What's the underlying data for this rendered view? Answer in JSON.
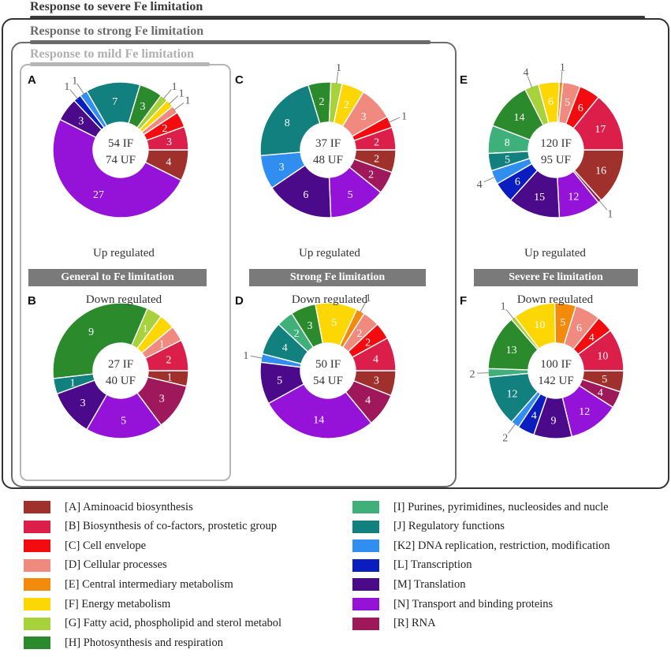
{
  "frames": {
    "severe_label": "Response to severe Fe limitation",
    "strong_label": "Response to strong Fe limitation",
    "mild_label": "Response to mild Fe limitation"
  },
  "bands": {
    "general": "General to Fe limitation",
    "strong": "Strong Fe limitation",
    "severe": "Severe Fe limitation"
  },
  "colors": {
    "A": "#a0302c",
    "B": "#dc1f4a",
    "C": "#f20c10",
    "D": "#f08a7e",
    "E": "#f28a0c",
    "F": "#fcd704",
    "G": "#a7d23c",
    "H": "#2b8a2b",
    "I": "#40b07a",
    "J": "#11807e",
    "K2": "#2f8ef0",
    "L": "#0a1dc0",
    "M": "#4a0a8a",
    "N": "#9512d8",
    "R": "#a0185c"
  },
  "chart_data": [
    {
      "type": "pie",
      "panel": "A",
      "regulation": "Up regulated",
      "center": [
        "54 IF",
        "74 UF"
      ],
      "slices": [
        {
          "cat": "A",
          "value": 4,
          "label": "4"
        },
        {
          "cat": "N",
          "value": 27,
          "label": "27"
        },
        {
          "cat": "M",
          "value": 3,
          "label": "3"
        },
        {
          "cat": "L",
          "value": 1,
          "label": "1"
        },
        {
          "cat": "K2",
          "value": 1,
          "label": "1"
        },
        {
          "cat": "J",
          "value": 7,
          "label": "7"
        },
        {
          "cat": "H",
          "value": 3,
          "label": "3"
        },
        {
          "cat": "G",
          "value": 1,
          "label": "1"
        },
        {
          "cat": "F",
          "value": 1,
          "label": "1"
        },
        {
          "cat": "D",
          "value": 1,
          "label": "1"
        },
        {
          "cat": "C",
          "value": 2,
          "label": "2"
        },
        {
          "cat": "B",
          "value": 3,
          "label": "3"
        }
      ]
    },
    {
      "type": "pie",
      "panel": "B",
      "regulation": "Down regulated",
      "center": [
        "27 IF",
        "40 UF"
      ],
      "slices": [
        {
          "cat": "A",
          "value": 1,
          "label": "1"
        },
        {
          "cat": "R",
          "value": 3,
          "label": "3"
        },
        {
          "cat": "N",
          "value": 5,
          "label": "5"
        },
        {
          "cat": "M",
          "value": 3,
          "label": "3"
        },
        {
          "cat": "J",
          "value": 1,
          "label": "1"
        },
        {
          "cat": "H",
          "value": 9,
          "label": "9"
        },
        {
          "cat": "G",
          "value": 1,
          "label": "1"
        },
        {
          "cat": "F",
          "value": 1,
          "label": ""
        },
        {
          "cat": "D",
          "value": 1,
          "label": "1"
        },
        {
          "cat": "B",
          "value": 2,
          "label": "2"
        }
      ]
    },
    {
      "type": "pie",
      "panel": "C",
      "regulation": "Up regulated",
      "center": [
        "37 IF",
        "48 UF"
      ],
      "slices": [
        {
          "cat": "A",
          "value": 2,
          "label": "2"
        },
        {
          "cat": "R",
          "value": 2,
          "label": "2"
        },
        {
          "cat": "N",
          "value": 5,
          "label": "5"
        },
        {
          "cat": "M",
          "value": 6,
          "label": "6"
        },
        {
          "cat": "K2",
          "value": 3,
          "label": "3"
        },
        {
          "cat": "J",
          "value": 8,
          "label": "8"
        },
        {
          "cat": "H",
          "value": 2,
          "label": "2"
        },
        {
          "cat": "G",
          "value": 1,
          "label": "1"
        },
        {
          "cat": "F",
          "value": 2,
          "label": "2"
        },
        {
          "cat": "D",
          "value": 3,
          "label": "3"
        },
        {
          "cat": "C",
          "value": 1,
          "label": "1"
        },
        {
          "cat": "B",
          "value": 2,
          "label": "2"
        }
      ]
    },
    {
      "type": "pie",
      "panel": "D",
      "regulation": "Down regulated",
      "center": [
        "50 IF",
        "54 UF"
      ],
      "slices": [
        {
          "cat": "A",
          "value": 3,
          "label": "3"
        },
        {
          "cat": "R",
          "value": 4,
          "label": "4"
        },
        {
          "cat": "N",
          "value": 14,
          "label": "14"
        },
        {
          "cat": "M",
          "value": 5,
          "label": "5"
        },
        {
          "cat": "K2",
          "value": 1,
          "label": "1"
        },
        {
          "cat": "J",
          "value": 4,
          "label": "4"
        },
        {
          "cat": "I",
          "value": 2,
          "label": "2"
        },
        {
          "cat": "H",
          "value": 3,
          "label": "3"
        },
        {
          "cat": "F",
          "value": 5,
          "label": "5"
        },
        {
          "cat": "E",
          "value": 1,
          "label": "1"
        },
        {
          "cat": "D",
          "value": 2,
          "label": "2"
        },
        {
          "cat": "C",
          "value": 2,
          "label": "2"
        },
        {
          "cat": "B",
          "value": 4,
          "label": "4"
        }
      ]
    },
    {
      "type": "pie",
      "panel": "E",
      "regulation": "Up regulated",
      "center": [
        "120 IF",
        "95 UF"
      ],
      "slices": [
        {
          "cat": "A",
          "value": 16,
          "label": "16"
        },
        {
          "cat": "R",
          "value": 1,
          "label": "1"
        },
        {
          "cat": "N",
          "value": 12,
          "label": "12"
        },
        {
          "cat": "M",
          "value": 15,
          "label": "15"
        },
        {
          "cat": "L",
          "value": 6,
          "label": "6"
        },
        {
          "cat": "K2",
          "value": 4,
          "label": "4"
        },
        {
          "cat": "J",
          "value": 5,
          "label": "5"
        },
        {
          "cat": "I",
          "value": 8,
          "label": "8"
        },
        {
          "cat": "H",
          "value": 14,
          "label": "14"
        },
        {
          "cat": "G",
          "value": 4,
          "label": "4"
        },
        {
          "cat": "F",
          "value": 6,
          "label": "6"
        },
        {
          "cat": "E",
          "value": 1,
          "label": "1"
        },
        {
          "cat": "D",
          "value": 5,
          "label": "5"
        },
        {
          "cat": "C",
          "value": 6,
          "label": "6"
        },
        {
          "cat": "B",
          "value": 17,
          "label": "17"
        }
      ]
    },
    {
      "type": "pie",
      "panel": "F",
      "regulation": "Down regulated",
      "center": [
        "100 IF",
        "142 UF"
      ],
      "slices": [
        {
          "cat": "A",
          "value": 5,
          "label": "5"
        },
        {
          "cat": "R",
          "value": 4,
          "label": "4"
        },
        {
          "cat": "N",
          "value": 12,
          "label": "12"
        },
        {
          "cat": "M",
          "value": 9,
          "label": "9"
        },
        {
          "cat": "L",
          "value": 4,
          "label": "4"
        },
        {
          "cat": "K2",
          "value": 2,
          "label": "2"
        },
        {
          "cat": "J",
          "value": 12,
          "label": "12"
        },
        {
          "cat": "I",
          "value": 2,
          "label": "2"
        },
        {
          "cat": "H",
          "value": 13,
          "label": "13"
        },
        {
          "cat": "G",
          "value": 1,
          "label": "1"
        },
        {
          "cat": "F",
          "value": 10,
          "label": "10"
        },
        {
          "cat": "E",
          "value": 5,
          "label": "5"
        },
        {
          "cat": "D",
          "value": 6,
          "label": "6"
        },
        {
          "cat": "C",
          "value": 4,
          "label": "4"
        },
        {
          "cat": "B",
          "value": 10,
          "label": "10"
        }
      ]
    }
  ],
  "legend": [
    {
      "cat": "A",
      "label": "[A] Aminoacid biosynthesis"
    },
    {
      "cat": "B",
      "label": "[B] Biosynthesis of co-factors, prostetic group"
    },
    {
      "cat": "C",
      "label": "[C] Cell envelope"
    },
    {
      "cat": "D",
      "label": "[D] Cellular processes"
    },
    {
      "cat": "E",
      "label": "[E] Central intermediary metabolism"
    },
    {
      "cat": "F",
      "label": "[F] Energy metabolism"
    },
    {
      "cat": "G",
      "label": "[G] Fatty acid, phospholipid and sterol metabol"
    },
    {
      "cat": "H",
      "label": "[H] Photosynthesis and respiration"
    },
    {
      "cat": "I",
      "label": "[I] Purines, pyrimidines, nucleosides and nucle"
    },
    {
      "cat": "J",
      "label": "[J] Regulatory functions"
    },
    {
      "cat": "K2",
      "label": "[K2] DNA replication, restriction, modification"
    },
    {
      "cat": "L",
      "label": "[L] Transcription"
    },
    {
      "cat": "M",
      "label": "[M] Translation"
    },
    {
      "cat": "N",
      "label": "[N] Transport and binding proteins"
    },
    {
      "cat": "R",
      "label": "[R] RNA"
    }
  ]
}
